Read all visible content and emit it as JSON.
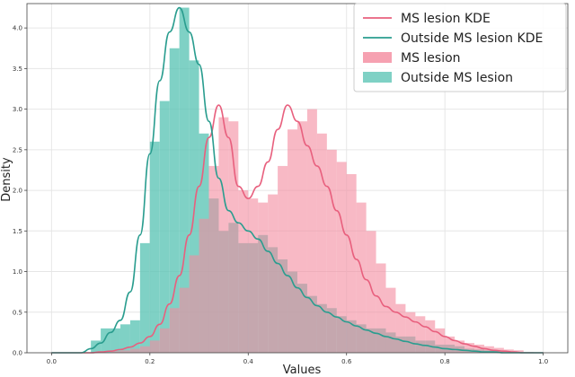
{
  "chart_data": {
    "type": "histogram",
    "xlabel": "Values",
    "ylabel": "Density",
    "xlim": [
      -0.05,
      1.05
    ],
    "ylim": [
      0,
      4.3
    ],
    "x_ticks": [
      0.0,
      0.2,
      0.4,
      0.6,
      0.8,
      1.0
    ],
    "x_tick_labels": [
      "0.0",
      "0.2",
      "0.4",
      "0.6",
      "0.8",
      "1.0"
    ],
    "y_ticks": [
      0.0,
      0.5,
      1.0,
      1.5,
      2.0,
      2.5,
      3.0,
      3.5,
      4.0
    ],
    "y_tick_labels": [
      "0.0",
      "0.5",
      "1.0",
      "1.5",
      "2.0",
      "2.5",
      "3.0",
      "3.5",
      "4.0"
    ],
    "grid": true,
    "legend_position": "top-right",
    "bin_edges": [
      0.0,
      0.02,
      0.04,
      0.06,
      0.08,
      0.1,
      0.12,
      0.14,
      0.16,
      0.18,
      0.2,
      0.22,
      0.24,
      0.26,
      0.28,
      0.3,
      0.32,
      0.34,
      0.36,
      0.38,
      0.4,
      0.42,
      0.44,
      0.46,
      0.48,
      0.5,
      0.52,
      0.54,
      0.56,
      0.58,
      0.6,
      0.62,
      0.64,
      0.66,
      0.68,
      0.7,
      0.72,
      0.74,
      0.76,
      0.78,
      0.8,
      0.82,
      0.84,
      0.86,
      0.88,
      0.9,
      0.92,
      0.94,
      0.96,
      0.98,
      1.0
    ],
    "kde_x": [
      0.0,
      0.02,
      0.04,
      0.06,
      0.08,
      0.1,
      0.12,
      0.14,
      0.16,
      0.18,
      0.2,
      0.22,
      0.24,
      0.26,
      0.28,
      0.3,
      0.32,
      0.34,
      0.36,
      0.38,
      0.4,
      0.42,
      0.44,
      0.46,
      0.48,
      0.5,
      0.52,
      0.54,
      0.56,
      0.58,
      0.6,
      0.62,
      0.64,
      0.66,
      0.68,
      0.7,
      0.72,
      0.74,
      0.76,
      0.78,
      0.8,
      0.82,
      0.84,
      0.86,
      0.88,
      0.9,
      0.92,
      0.94,
      0.96,
      0.98,
      1.0
    ],
    "series": [
      {
        "name": "Outside MS lesion",
        "kind": "histogram",
        "color": "#5fc5b7",
        "values": [
          0,
          0,
          0,
          0,
          0.15,
          0.3,
          0.3,
          0.35,
          0.4,
          1.35,
          2.6,
          3.1,
          3.75,
          4.25,
          3.6,
          2.7,
          1.9,
          1.5,
          1.6,
          1.35,
          1.35,
          1.45,
          1.3,
          1.15,
          1.0,
          0.85,
          0.7,
          0.6,
          0.55,
          0.45,
          0.4,
          0.35,
          0.3,
          0.3,
          0.25,
          0.2,
          0.2,
          0.15,
          0.15,
          0.1,
          0.1,
          0.08,
          0.05,
          0.04,
          0.03,
          0.02,
          0.01,
          0,
          0,
          0
        ]
      },
      {
        "name": "MS lesion",
        "kind": "histogram",
        "color": "#f48a9e",
        "values": [
          0,
          0,
          0,
          0,
          0,
          0,
          0.02,
          0.03,
          0.05,
          0.08,
          0.15,
          0.3,
          0.55,
          0.8,
          1.2,
          1.65,
          2.3,
          2.9,
          2.85,
          2.0,
          1.9,
          1.85,
          1.95,
          2.3,
          2.75,
          2.85,
          3.0,
          2.7,
          2.5,
          2.35,
          2.2,
          1.85,
          1.5,
          1.1,
          0.8,
          0.6,
          0.5,
          0.45,
          0.4,
          0.3,
          0.2,
          0.15,
          0.12,
          0.1,
          0.08,
          0.06,
          0.04,
          0.03,
          0.01,
          0
        ]
      },
      {
        "name": "MS lesion KDE",
        "kind": "kde",
        "color": "#e8607e",
        "values": [
          0,
          0,
          0,
          0,
          0,
          0.01,
          0.02,
          0.04,
          0.07,
          0.12,
          0.2,
          0.35,
          0.6,
          0.95,
          1.45,
          2.05,
          2.65,
          3.05,
          2.65,
          2.05,
          1.9,
          2.05,
          2.35,
          2.75,
          3.05,
          2.85,
          2.55,
          2.3,
          2.05,
          1.75,
          1.45,
          1.15,
          0.9,
          0.7,
          0.57,
          0.5,
          0.44,
          0.38,
          0.32,
          0.26,
          0.2,
          0.15,
          0.11,
          0.08,
          0.05,
          0.03,
          0.02,
          0.01,
          0,
          0,
          0
        ]
      },
      {
        "name": "Outside MS lesion KDE",
        "kind": "kde",
        "color": "#2a9d8f",
        "values": [
          0,
          0,
          0,
          0,
          0.05,
          0.12,
          0.25,
          0.4,
          0.75,
          1.45,
          2.45,
          3.35,
          3.95,
          4.25,
          3.95,
          3.55,
          2.85,
          2.15,
          1.75,
          1.6,
          1.5,
          1.4,
          1.25,
          1.1,
          0.95,
          0.8,
          0.68,
          0.58,
          0.5,
          0.44,
          0.38,
          0.33,
          0.28,
          0.24,
          0.2,
          0.17,
          0.14,
          0.11,
          0.09,
          0.07,
          0.05,
          0.04,
          0.03,
          0.02,
          0.01,
          0.01,
          0,
          0,
          0,
          0,
          0
        ]
      }
    ],
    "legend_entries": [
      {
        "label": "MS lesion KDE",
        "type": "line",
        "color": "#e8607e"
      },
      {
        "label": "Outside MS lesion KDE",
        "type": "line",
        "color": "#2a9d8f"
      },
      {
        "label": "MS lesion",
        "type": "patch",
        "color": "#f48a9e"
      },
      {
        "label": "Outside MS lesion",
        "type": "patch",
        "color": "#5fc5b7"
      }
    ]
  }
}
